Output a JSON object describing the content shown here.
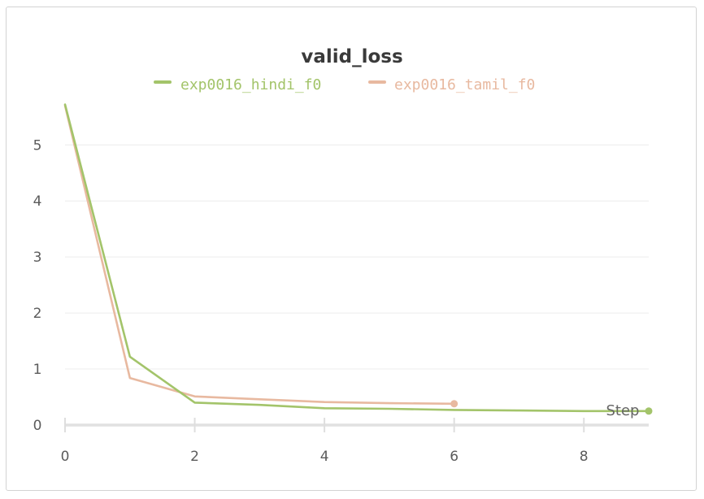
{
  "chart_data": {
    "type": "line",
    "title": "valid_loss",
    "xlabel": "Step",
    "ylabel": "",
    "xlim": [
      0,
      9
    ],
    "ylim": [
      0,
      5.7
    ],
    "x_ticks": [
      "0",
      "2",
      "4",
      "6",
      "8"
    ],
    "y_ticks": [
      "0",
      "1",
      "2",
      "3",
      "4",
      "5"
    ],
    "legend_position": "top-center",
    "grid": true,
    "series": [
      {
        "name": "exp0016_hindi_f0",
        "color": "#a3c46a",
        "x": [
          0,
          1,
          2,
          3,
          4,
          5,
          6,
          7,
          8,
          9
        ],
        "y": [
          5.72,
          1.22,
          0.4,
          0.36,
          0.3,
          0.29,
          0.27,
          0.26,
          0.25,
          0.25
        ]
      },
      {
        "name": "exp0016_tamil_f0",
        "color": "#e8b9a0",
        "x": [
          0,
          1,
          2,
          3,
          4,
          5,
          6
        ],
        "y": [
          5.7,
          0.84,
          0.51,
          0.46,
          0.41,
          0.39,
          0.38
        ]
      }
    ]
  }
}
